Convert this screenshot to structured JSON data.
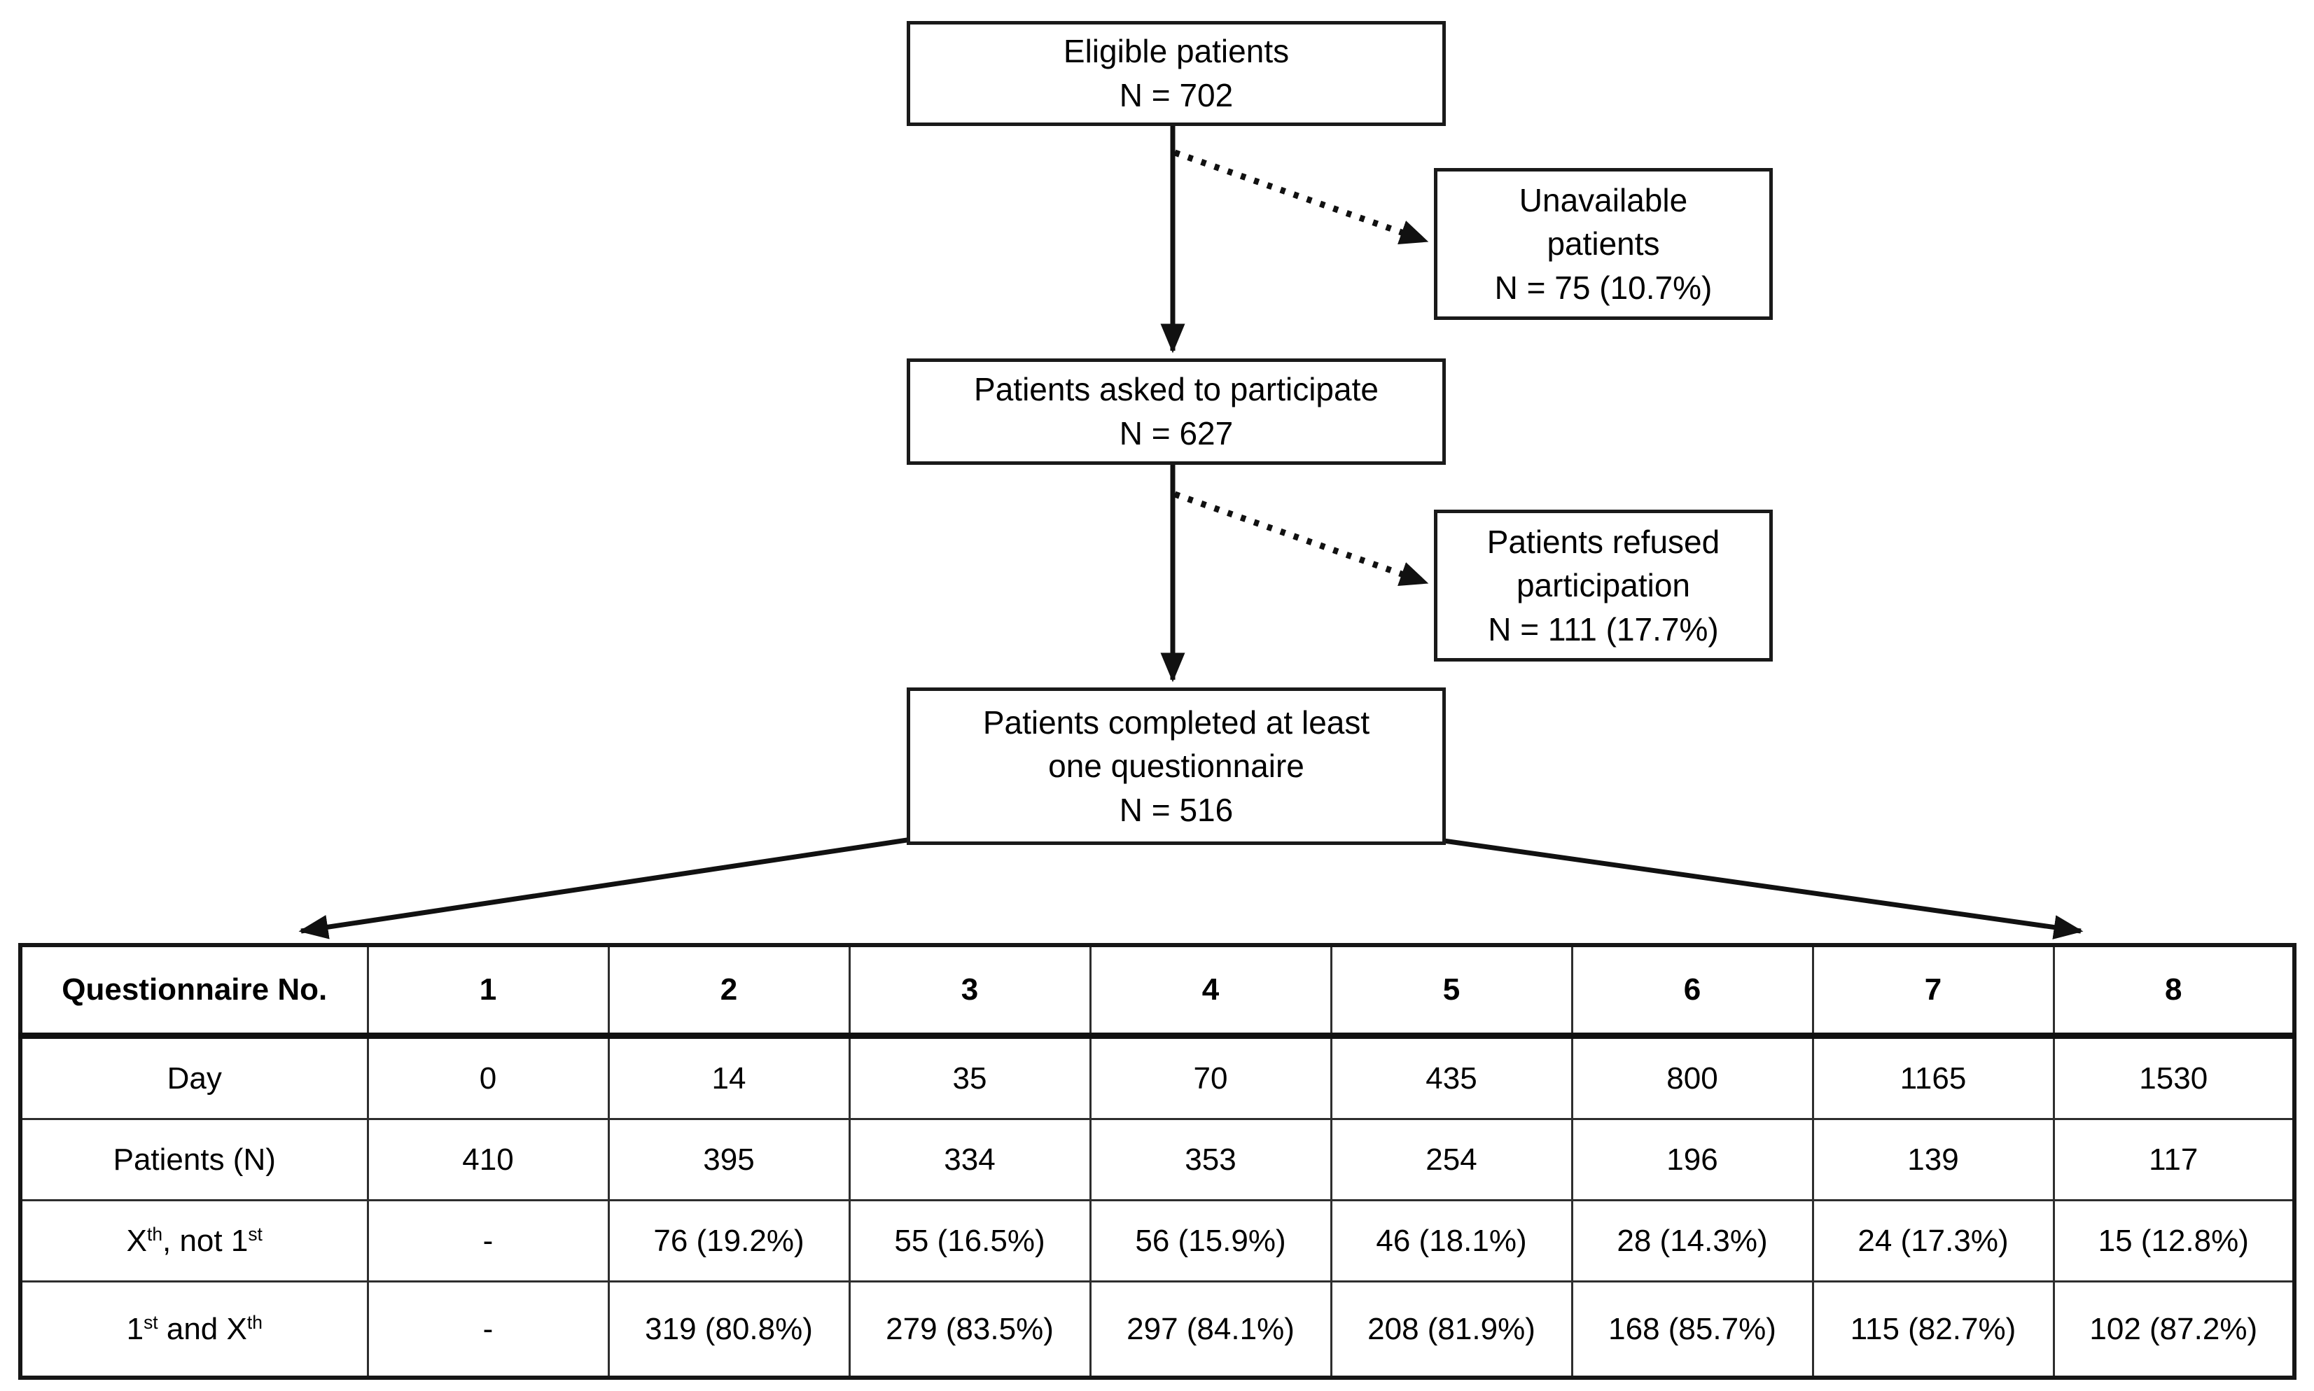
{
  "style": {
    "ink_color": "#111111",
    "background_color": "#ffffff"
  },
  "diagram": {
    "boxes": {
      "eligible": {
        "lines": [
          "Eligible patients",
          "N = 702"
        ]
      },
      "unavailable": {
        "lines": [
          "Unavailable",
          "patients",
          "N = 75 (10.7%)"
        ]
      },
      "asked": {
        "lines": [
          "Patients asked to participate",
          "N = 627"
        ]
      },
      "refused": {
        "lines": [
          "Patients refused",
          "participation",
          "N = 111 (17.7%)"
        ]
      },
      "completed": {
        "lines": [
          "Patients completed at least",
          "one questionnaire",
          "N = 516"
        ]
      }
    }
  },
  "table": {
    "header": {
      "label": "Questionnaire No.",
      "values": [
        "1",
        "2",
        "3",
        "4",
        "5",
        "6",
        "7",
        "8"
      ]
    },
    "rows": [
      {
        "label": [
          {
            "t": "Day"
          }
        ],
        "values": [
          "0",
          "14",
          "35",
          "70",
          "435",
          "800",
          "1165",
          "1530"
        ]
      },
      {
        "label": [
          {
            "t": "Patients (N)"
          }
        ],
        "values": [
          "410",
          "395",
          "334",
          "353",
          "254",
          "196",
          "139",
          "117"
        ]
      },
      {
        "label": [
          {
            "t": "X"
          },
          {
            "t": "th",
            "sup": true
          },
          {
            "t": ", not 1"
          },
          {
            "t": "st",
            "sup": true
          }
        ],
        "values": [
          "-",
          "76 (19.2%)",
          "55 (16.5%)",
          "56 (15.9%)",
          "46 (18.1%)",
          "28 (14.3%)",
          "24 (17.3%)",
          "15 (12.8%)"
        ]
      },
      {
        "label": [
          {
            "t": "1"
          },
          {
            "t": "st",
            "sup": true
          },
          {
            "t": " and X"
          },
          {
            "t": "th",
            "sup": true
          }
        ],
        "values": [
          "-",
          "319 (80.8%)",
          "279 (83.5%)",
          "297 (84.1%)",
          "208 (81.9%)",
          "168 (85.7%)",
          "115 (82.7%)",
          "102 (87.2%)"
        ]
      }
    ]
  }
}
